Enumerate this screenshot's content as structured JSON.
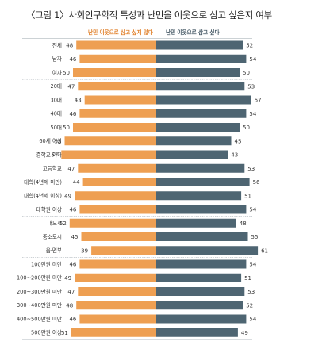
{
  "title": "〈그림 1〉사회인구학적 특성과 난민을 이웃으로 삼고 싶은지 여부",
  "chart_data": {
    "type": "bar",
    "orientation": "horizontal-diverging",
    "categories": [
      "전체",
      "남자",
      "여자",
      "20대",
      "30대",
      "40대",
      "50대",
      "60세 이상",
      "중학교 이하",
      "고등학교",
      "대학(4년제 미만)",
      "대학(4년제 이상)",
      "대학원 이상",
      "대도시",
      "중소도시",
      "읍·면부",
      "100만원 미만",
      "100~200만원 미만",
      "200~300만원 미만",
      "300~400만원 미만",
      "400~500만원 미만",
      "500만원 이상"
    ],
    "groups": [
      [
        0
      ],
      [
        1,
        2
      ],
      [
        3,
        4,
        5,
        6,
        7
      ],
      [
        8,
        9,
        10,
        11,
        12
      ],
      [
        13,
        14,
        15
      ],
      [
        16,
        17,
        18,
        19,
        20,
        21
      ]
    ],
    "series": [
      {
        "name": "난민 이웃으로 삼고 싶지 않다",
        "color": "#EE9F52",
        "values": [
          48,
          46,
          50,
          47,
          43,
          46,
          50,
          55,
          57,
          47,
          44,
          49,
          46,
          52,
          45,
          39,
          46,
          49,
          47,
          48,
          46,
          51
        ]
      },
      {
        "name": "난민 이웃으로 삼고 싶다",
        "color": "#4E6572",
        "values": [
          52,
          54,
          50,
          53,
          57,
          54,
          50,
          45,
          43,
          53,
          56,
          51,
          54,
          48,
          55,
          61,
          54,
          51,
          53,
          52,
          54,
          49
        ]
      }
    ]
  }
}
